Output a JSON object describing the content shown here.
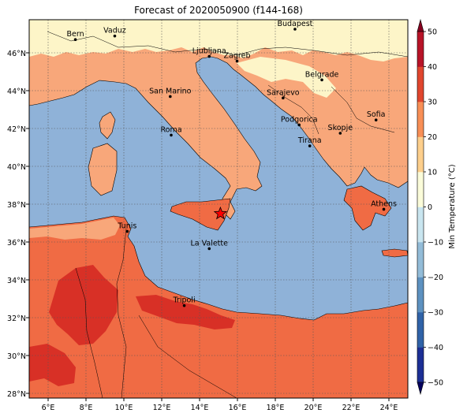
{
  "title": "Forecast of 2020050900 (f144-168)",
  "map": {
    "lon_range": [
      5,
      25
    ],
    "lat_range": [
      28,
      48
    ],
    "y_ticks": [
      "28°N",
      "30°N",
      "32°N",
      "34°N",
      "36°N",
      "38°N",
      "40°N",
      "42°N",
      "44°N",
      "46°N"
    ],
    "x_ticks": [
      "6°E",
      "8°E",
      "10°E",
      "12°E",
      "14°E",
      "16°E",
      "18°E",
      "20°E",
      "22°E",
      "24°E"
    ],
    "gridlines": "dotted",
    "colors": {
      "sea": "#8fb2d8",
      "land_0_10": "#fdf5c8",
      "land_10_20": "#f8a77a",
      "land_20_30": "#f06b44",
      "land_30_40": "#d83026",
      "coast": "#000000"
    },
    "cities": [
      {
        "name": "Bern",
        "lon": 7.44,
        "lat": 46.95
      },
      {
        "name": "Vaduz",
        "lon": 9.52,
        "lat": 47.14
      },
      {
        "name": "Budapest",
        "lon": 19.04,
        "lat": 47.5
      },
      {
        "name": "Ljubljana",
        "lon": 14.51,
        "lat": 46.06
      },
      {
        "name": "Zagreb",
        "lon": 15.98,
        "lat": 45.81
      },
      {
        "name": "Belgrade",
        "lon": 20.46,
        "lat": 44.82
      },
      {
        "name": "San Marino",
        "lon": 12.45,
        "lat": 43.94
      },
      {
        "name": "Sarajevo",
        "lon": 18.41,
        "lat": 43.86
      },
      {
        "name": "Sofia",
        "lon": 23.32,
        "lat": 42.7
      },
      {
        "name": "Podgorica",
        "lon": 19.26,
        "lat": 42.44
      },
      {
        "name": "Skopje",
        "lon": 21.43,
        "lat": 42.0
      },
      {
        "name": "Roma",
        "lon": 12.5,
        "lat": 41.9
      },
      {
        "name": "Tirana",
        "lon": 19.82,
        "lat": 41.33
      },
      {
        "name": "Athens",
        "lon": 23.73,
        "lat": 37.98
      },
      {
        "name": "Tunis",
        "lon": 10.18,
        "lat": 36.81
      },
      {
        "name": "La Valette",
        "lon": 14.51,
        "lat": 35.9
      },
      {
        "name": "Tripoli",
        "lon": 13.19,
        "lat": 32.89
      }
    ],
    "marker": {
      "symbol": "star",
      "lon": 15.1,
      "lat": 37.75,
      "color": "#ff0000"
    }
  },
  "colorbar": {
    "label": "Min Temperature (°C)",
    "ticks": [
      "50",
      "40",
      "30",
      "20",
      "10",
      "0",
      "−10",
      "−20",
      "−30",
      "−40",
      "−50"
    ],
    "colors": [
      "#05005e",
      "#1c2f95",
      "#3063a8",
      "#5d91c0",
      "#93bcd8",
      "#c9e5ef",
      "#fbfcda",
      "#fdcf8c",
      "#f88f56",
      "#e0462e",
      "#b81428",
      "#86001f"
    ]
  }
}
